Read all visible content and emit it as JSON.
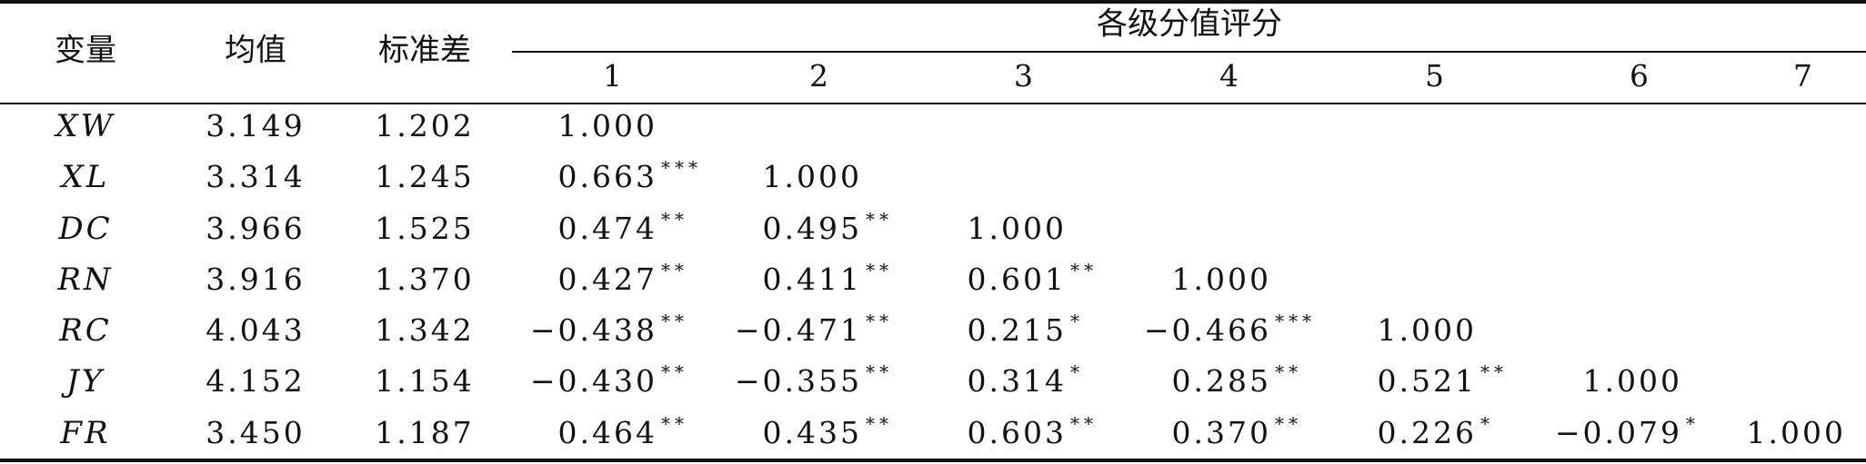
{
  "table": {
    "header": {
      "variable": "变量",
      "mean": "均值",
      "sd": "标准差",
      "group": "各级分值评分",
      "levels": [
        "1",
        "2",
        "3",
        "4",
        "5",
        "6",
        "7"
      ]
    },
    "rows": [
      {
        "name": "XW",
        "mean": "3.149",
        "sd": "1.202",
        "cells": [
          {
            "v": "1.000"
          }
        ]
      },
      {
        "name": "XL",
        "mean": "3.314",
        "sd": "1.245",
        "cells": [
          {
            "v": "0.663",
            "sig": "***"
          },
          {
            "v": "1.000"
          }
        ]
      },
      {
        "name": "DC",
        "mean": "3.966",
        "sd": "1.525",
        "cells": [
          {
            "v": "0.474",
            "sig": "**"
          },
          {
            "v": "0.495",
            "sig": "**"
          },
          {
            "v": "1.000"
          }
        ]
      },
      {
        "name": "RN",
        "mean": "3.916",
        "sd": "1.370",
        "cells": [
          {
            "v": "0.427",
            "sig": "**"
          },
          {
            "v": "0.411",
            "sig": "**"
          },
          {
            "v": "0.601",
            "sig": "**"
          },
          {
            "v": "1.000"
          }
        ]
      },
      {
        "name": "RC",
        "mean": "4.043",
        "sd": "1.342",
        "cells": [
          {
            "v": "−0.438",
            "sig": "**"
          },
          {
            "v": "−0.471",
            "sig": "**"
          },
          {
            "v": "0.215",
            "sig": "*"
          },
          {
            "v": "−0.466",
            "sig": "***"
          },
          {
            "v": "1.000"
          }
        ]
      },
      {
        "name": "JY",
        "mean": "4.152",
        "sd": "1.154",
        "cells": [
          {
            "v": "−0.430",
            "sig": "**"
          },
          {
            "v": "−0.355",
            "sig": "**"
          },
          {
            "v": "0.314",
            "sig": "*"
          },
          {
            "v": "0.285",
            "sig": "**"
          },
          {
            "v": "0.521",
            "sig": "**"
          },
          {
            "v": "1.000"
          }
        ]
      },
      {
        "name": "FR",
        "mean": "3.450",
        "sd": "1.187",
        "cells": [
          {
            "v": "0.464",
            "sig": "**"
          },
          {
            "v": "0.435",
            "sig": "**"
          },
          {
            "v": "0.603",
            "sig": "**"
          },
          {
            "v": "0.370",
            "sig": "**"
          },
          {
            "v": "0.226",
            "sig": "*"
          },
          {
            "v": "−0.079",
            "sig": "*"
          },
          {
            "v": "1.000"
          }
        ]
      }
    ]
  }
}
